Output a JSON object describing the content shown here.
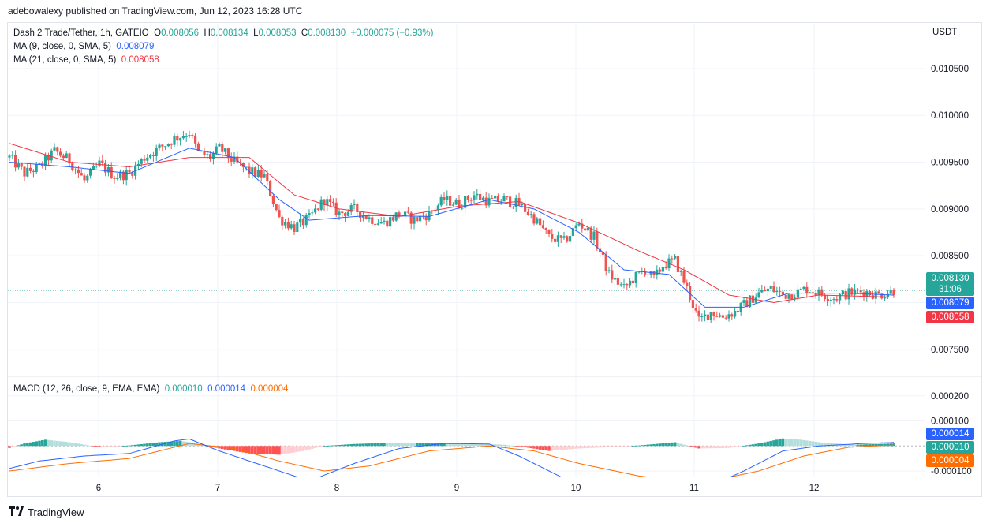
{
  "header": {
    "published": "adebowalexy published on TradingView.com, Jun 12, 2023 16:28 UTC"
  },
  "legend": {
    "symbol": "Dash 2 Trade/Tether, 1h, GATEIO",
    "open_label": "O",
    "open": "0.008056",
    "high_label": "H",
    "high": "0.008134",
    "low_label": "L",
    "low": "0.008053",
    "close_label": "C",
    "close": "0.008130",
    "change": "+0.000075 (+0.93%)",
    "ma9_label": "MA (9, close, 0, SMA, 5)",
    "ma9_value": "0.008079",
    "ma21_label": "MA (21, close, 0, SMA, 5)",
    "ma21_value": "0.008058",
    "macd_label": "MACD (12, 26, close, 9, EMA, EMA)",
    "macd_hist": "0.000010",
    "macd_line": "0.000014",
    "macd_signal": "0.000004"
  },
  "badges": {
    "price": "0.008130",
    "countdown": "31:06",
    "ma9": "0.008079",
    "ma21": "0.008058",
    "macd_line": "0.000014",
    "macd_hist": "0.000010",
    "macd_signal": "0.000004"
  },
  "footer": {
    "brand": "TradingView"
  },
  "colors": {
    "up": "#26a69a",
    "down": "#ef5350",
    "ma9": "#2962ff",
    "ma21": "#f23645",
    "signal": "#ff6d00",
    "grid": "#f0f3fa"
  },
  "chart_data": {
    "type": "candlestick",
    "currency": "USDT",
    "x_ticks": [
      "6",
      "7",
      "8",
      "9",
      "10",
      "11",
      "12"
    ],
    "y_ticks": [
      "0.010500",
      "0.010000",
      "0.009500",
      "0.009000",
      "0.008500",
      "0.008000",
      "0.007500"
    ],
    "y_range": [
      0.00722,
      0.01098
    ],
    "macd_y_ticks": [
      "0.000200",
      "0.000100",
      "-0.000100"
    ],
    "macd_y_range": [
      -0.000122,
      0.000275
    ],
    "last_price": 0.00813,
    "close_path": [
      [
        0,
        0.00955
      ],
      [
        5,
        0.00938
      ],
      [
        10,
        0.00945
      ],
      [
        15,
        0.00962
      ],
      [
        20,
        0.00952
      ],
      [
        25,
        0.0093
      ],
      [
        30,
        0.00948
      ],
      [
        35,
        0.00935
      ],
      [
        40,
        0.00938
      ],
      [
        45,
        0.00955
      ],
      [
        50,
        0.00965
      ],
      [
        55,
        0.00975
      ],
      [
        60,
        0.00982
      ],
      [
        63,
        0.0096
      ],
      [
        67,
        0.00955
      ],
      [
        70,
        0.00965
      ],
      [
        75,
        0.0095
      ],
      [
        80,
        0.0094
      ],
      [
        85,
        0.00935
      ],
      [
        90,
        0.0089
      ],
      [
        95,
        0.0088
      ],
      [
        100,
        0.0089
      ],
      [
        105,
        0.0091
      ],
      [
        110,
        0.00895
      ],
      [
        115,
        0.009
      ],
      [
        120,
        0.0089
      ],
      [
        125,
        0.00885
      ],
      [
        130,
        0.00895
      ],
      [
        135,
        0.00888
      ],
      [
        140,
        0.00895
      ],
      [
        145,
        0.0091
      ],
      [
        150,
        0.00905
      ],
      [
        155,
        0.00915
      ],
      [
        160,
        0.00908
      ],
      [
        165,
        0.0091
      ],
      [
        170,
        0.00905
      ],
      [
        175,
        0.0089
      ],
      [
        180,
        0.0087
      ],
      [
        185,
        0.00865
      ],
      [
        190,
        0.00885
      ],
      [
        195,
        0.0087
      ],
      [
        200,
        0.0083
      ],
      [
        205,
        0.00815
      ],
      [
        208,
        0.00825
      ],
      [
        212,
        0.00835
      ],
      [
        215,
        0.00825
      ],
      [
        218,
        0.0084
      ],
      [
        222,
        0.00845
      ],
      [
        226,
        0.00815
      ],
      [
        230,
        0.0078
      ],
      [
        234,
        0.0079
      ],
      [
        238,
        0.00785
      ],
      [
        242,
        0.0079
      ],
      [
        246,
        0.008
      ],
      [
        250,
        0.0081
      ],
      [
        254,
        0.00815
      ],
      [
        258,
        0.00808
      ],
      [
        262,
        0.0081
      ],
      [
        266,
        0.00815
      ],
      [
        270,
        0.0081
      ],
      [
        275,
        0.00805
      ],
      [
        280,
        0.0081
      ],
      [
        285,
        0.00812
      ],
      [
        290,
        0.00808
      ],
      [
        295,
        0.00813
      ]
    ],
    "ma9_path": [
      [
        0,
        0.0095
      ],
      [
        20,
        0.00945
      ],
      [
        40,
        0.00938
      ],
      [
        60,
        0.00965
      ],
      [
        75,
        0.00955
      ],
      [
        90,
        0.0091
      ],
      [
        100,
        0.00888
      ],
      [
        120,
        0.00893
      ],
      [
        140,
        0.00892
      ],
      [
        160,
        0.0091
      ],
      [
        175,
        0.009
      ],
      [
        190,
        0.00875
      ],
      [
        205,
        0.00835
      ],
      [
        220,
        0.0083
      ],
      [
        232,
        0.00795
      ],
      [
        245,
        0.00795
      ],
      [
        260,
        0.0081
      ],
      [
        280,
        0.0081
      ],
      [
        295,
        0.008079
      ]
    ],
    "ma21_path": [
      [
        0,
        0.0097
      ],
      [
        20,
        0.0095
      ],
      [
        40,
        0.00945
      ],
      [
        60,
        0.00955
      ],
      [
        80,
        0.00955
      ],
      [
        95,
        0.00915
      ],
      [
        110,
        0.009
      ],
      [
        130,
        0.00892
      ],
      [
        150,
        0.00903
      ],
      [
        170,
        0.00908
      ],
      [
        190,
        0.00885
      ],
      [
        210,
        0.00855
      ],
      [
        225,
        0.00835
      ],
      [
        240,
        0.00808
      ],
      [
        255,
        0.008
      ],
      [
        270,
        0.00808
      ],
      [
        295,
        0.008058
      ]
    ],
    "macd_hist_path": [
      [
        0,
        -8e-06
      ],
      [
        5,
        1e-05
      ],
      [
        12,
        2.5e-05
      ],
      [
        20,
        1.5e-05
      ],
      [
        30,
        -5e-06
      ],
      [
        40,
        2e-06
      ],
      [
        50,
        1.5e-05
      ],
      [
        57,
        2e-05
      ],
      [
        62,
        1.2e-05
      ],
      [
        70,
        -1e-05
      ],
      [
        80,
        -3e-05
      ],
      [
        90,
        -3.5e-05
      ],
      [
        98,
        -2e-05
      ],
      [
        105,
        0.0
      ],
      [
        115,
        8e-06
      ],
      [
        125,
        1.2e-05
      ],
      [
        135,
        1e-05
      ],
      [
        145,
        1.3e-05
      ],
      [
        155,
        1e-05
      ],
      [
        165,
        5e-06
      ],
      [
        172,
        -5e-06
      ],
      [
        180,
        -2e-05
      ],
      [
        190,
        -1e-05
      ],
      [
        200,
        -5e-06
      ],
      [
        210,
        2e-06
      ],
      [
        222,
        1.5e-05
      ],
      [
        230,
        -1e-05
      ],
      [
        240,
        -8e-06
      ],
      [
        250,
        1e-05
      ],
      [
        258,
        3e-05
      ],
      [
        264,
        2.5e-05
      ],
      [
        272,
        1.2e-05
      ],
      [
        282,
        5e-06
      ],
      [
        295,
        1e-05
      ]
    ],
    "macd_line_path": [
      [
        0,
        -9e-05
      ],
      [
        10,
        -6e-05
      ],
      [
        25,
        -4e-05
      ],
      [
        40,
        -3e-05
      ],
      [
        55,
        2e-05
      ],
      [
        60,
        2.8e-05
      ],
      [
        70,
        -2e-05
      ],
      [
        85,
        -8e-05
      ],
      [
        100,
        -0.00014
      ],
      [
        115,
        -7e-05
      ],
      [
        130,
        -1e-05
      ],
      [
        145,
        1e-05
      ],
      [
        160,
        8e-06
      ],
      [
        170,
        -4e-05
      ],
      [
        185,
        -0.00013
      ],
      [
        200,
        -0.00015
      ],
      [
        215,
        -0.00016
      ],
      [
        230,
        -0.00018
      ],
      [
        245,
        -0.0001
      ],
      [
        258,
        -2e-05
      ],
      [
        270,
        0.0
      ],
      [
        285,
        1e-05
      ],
      [
        295,
        1.4e-05
      ]
    ],
    "macd_signal_path": [
      [
        0,
        -0.0001
      ],
      [
        20,
        -7e-05
      ],
      [
        40,
        -5e-05
      ],
      [
        60,
        1e-05
      ],
      [
        75,
        -1e-05
      ],
      [
        90,
        -6e-05
      ],
      [
        105,
        -0.0001
      ],
      [
        120,
        -8e-05
      ],
      [
        140,
        -2e-05
      ],
      [
        160,
        0.0
      ],
      [
        175,
        -2e-05
      ],
      [
        190,
        -7e-05
      ],
      [
        210,
        -0.00012
      ],
      [
        230,
        -0.00015
      ],
      [
        250,
        -0.0001
      ],
      [
        265,
        -4e-05
      ],
      [
        280,
        -5e-06
      ],
      [
        295,
        4e-06
      ]
    ]
  }
}
